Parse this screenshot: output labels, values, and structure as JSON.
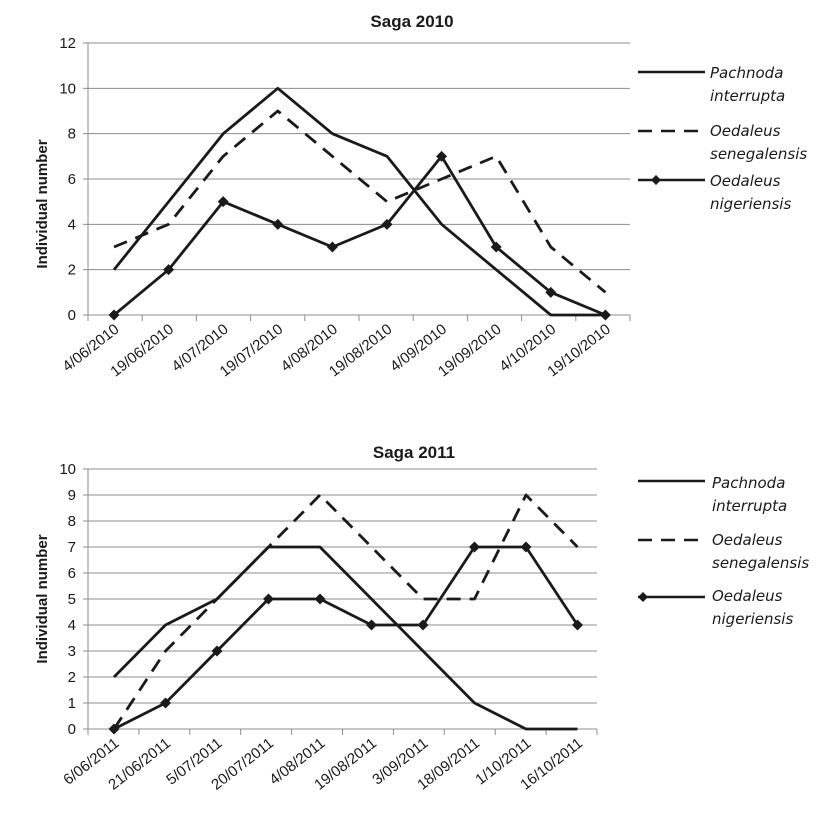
{
  "chart_data": [
    {
      "type": "line",
      "title": "Saga 2010",
      "xlabel": "",
      "ylabel": "Individual number",
      "ylim": [
        0,
        12
      ],
      "yticks": [
        0,
        2,
        4,
        6,
        8,
        10,
        12
      ],
      "grid": "horizontal",
      "legend": "right",
      "categories": [
        "4/06/2010",
        "19/06/2010",
        "4/07/2010",
        "19/07/2010",
        "4/08/2010",
        "19/08/2010",
        "4/09/2010",
        "19/09/2010",
        "4/10/2010",
        "19/10/2010"
      ],
      "series": [
        {
          "name": "Pachnoda interrupta",
          "legend_lines": [
            "Pachnoda",
            "interrupta"
          ],
          "style": "solid",
          "marker": "none",
          "color": "#1a1a1a",
          "values": [
            2,
            5,
            8,
            10,
            8,
            7,
            4,
            2,
            0,
            0
          ]
        },
        {
          "name": "Oedaleus senegalensis",
          "legend_lines": [
            "Oedaleus",
            "senegalensis"
          ],
          "style": "dashed",
          "marker": "none",
          "color": "#1a1a1a",
          "values": [
            3,
            4,
            7,
            9,
            7,
            5,
            6,
            7,
            3,
            1
          ]
        },
        {
          "name": "Oedaleus nigeriensis",
          "legend_lines": [
            "Oedaleus",
            "nigeriensis"
          ],
          "style": "solid",
          "marker": "diamond",
          "color": "#1a1a1a",
          "values": [
            0,
            2,
            5,
            4,
            3,
            4,
            7,
            3,
            1,
            0
          ]
        }
      ]
    },
    {
      "type": "line",
      "title": "Saga 2011",
      "xlabel": "",
      "ylabel": "Individual number",
      "ylim": [
        0,
        10
      ],
      "yticks": [
        0,
        1,
        2,
        3,
        4,
        5,
        6,
        7,
        8,
        9,
        10
      ],
      "grid": "horizontal",
      "legend": "right",
      "categories": [
        "6/06/2011",
        "21/06/2011",
        "5/07/2011",
        "20/07/2011",
        "4/08/2011",
        "19/08/2011",
        "3/09/2011",
        "18/09/2011",
        "1/10/2011",
        "16/10/2011"
      ],
      "series": [
        {
          "name": "Pachnoda interrupta",
          "legend_lines": [
            "Pachnoda",
            "interrupta"
          ],
          "style": "solid",
          "marker": "none",
          "color": "#1a1a1a",
          "values": [
            2,
            4,
            5,
            7,
            7,
            5,
            3,
            1,
            0,
            0
          ]
        },
        {
          "name": "Oedaleus senegalensis",
          "legend_lines": [
            "Oedaleus",
            "senegalensis"
          ],
          "style": "dashed",
          "marker": "none",
          "color": "#1a1a1a",
          "values": [
            0,
            3,
            5,
            7,
            9,
            7,
            5,
            5,
            9,
            7
          ]
        },
        {
          "name": "Oedaleus nigeriensis",
          "legend_lines": [
            "Oedaleus",
            "nigeriensis"
          ],
          "style": "solid",
          "marker": "diamond",
          "color": "#1a1a1a",
          "values": [
            0,
            1,
            3,
            5,
            5,
            4,
            4,
            7,
            7,
            4
          ]
        }
      ]
    }
  ]
}
